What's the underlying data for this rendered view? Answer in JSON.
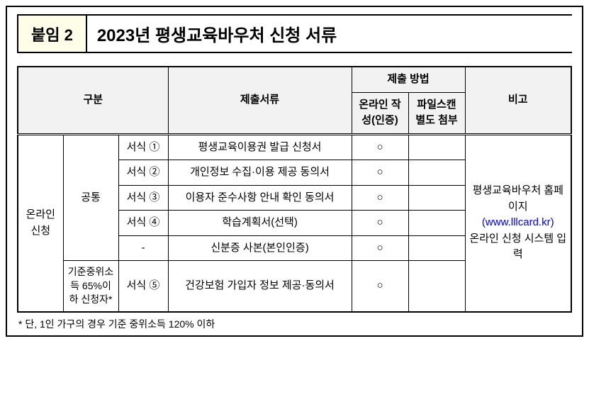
{
  "header": {
    "badge": "붙임 2",
    "title": "2023년 평생교육바우처 신청 서류"
  },
  "table": {
    "headers": {
      "category": "구분",
      "docs": "제출서류",
      "method": "제출 방법",
      "method_online": "온라인 작성(인증)",
      "method_file": "파일스캔 별도 첨부",
      "note": "비고"
    },
    "cat1": "온라인 신청",
    "cat2_common": "공통",
    "cat2_income": "기준중위소득 65%이하 신청자*",
    "rows": [
      {
        "form": "서식 ①",
        "doc": "평생교육이용권 발급 신청서",
        "online": "○",
        "file": ""
      },
      {
        "form": "서식 ②",
        "doc": "개인정보 수집·이용 제공 동의서",
        "online": "○",
        "file": ""
      },
      {
        "form": "서식 ③",
        "doc": "이용자 준수사항 안내 확인 동의서",
        "online": "○",
        "file": ""
      },
      {
        "form": "서식 ④",
        "doc": "학습계획서(선택)",
        "online": "○",
        "file": ""
      },
      {
        "form": "-",
        "doc": "신분증 사본(본인인증)",
        "online": "○",
        "file": ""
      },
      {
        "form": "서식 ⑤",
        "doc": "건강보험 가입자 정보 제공·동의서",
        "online": "○",
        "file": ""
      }
    ],
    "note_text1": "평생교육바우처 홈페이지",
    "note_link": "(www.lllcard.kr)",
    "note_text2": "온라인 신청 시스템 입력"
  },
  "footnote": "* 단, 1인 가구의 경우 기준 중위소득 120% 이하"
}
